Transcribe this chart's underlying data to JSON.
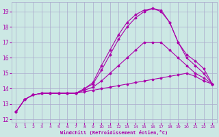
{
  "xlabel": "Windchill (Refroidissement éolien,°C)",
  "bg_color": "#cce8e4",
  "grid_color": "#aaaacc",
  "line_color": "#aa00aa",
  "xlim": [
    -0.5,
    23.5
  ],
  "ylim": [
    11.8,
    19.6
  ],
  "yticks": [
    12,
    13,
    14,
    15,
    16,
    17,
    18,
    19
  ],
  "xticks": [
    0,
    1,
    2,
    3,
    4,
    5,
    6,
    7,
    8,
    9,
    10,
    11,
    12,
    13,
    14,
    15,
    16,
    17,
    18,
    19,
    20,
    21,
    22,
    23
  ],
  "series": [
    {
      "x": [
        0,
        1,
        2,
        3,
        4,
        5,
        6,
        7,
        8,
        9,
        10,
        11,
        12,
        13,
        14,
        15,
        16,
        17,
        18,
        19,
        20,
        21,
        22,
        23
      ],
      "y": [
        12.5,
        13.3,
        13.6,
        13.7,
        13.7,
        13.7,
        13.7,
        13.7,
        13.8,
        13.9,
        14.0,
        14.1,
        14.2,
        14.3,
        14.4,
        14.5,
        14.6,
        14.7,
        14.8,
        14.9,
        15.0,
        14.8,
        14.5,
        14.3
      ]
    },
    {
      "x": [
        0,
        1,
        2,
        3,
        4,
        5,
        6,
        7,
        8,
        9,
        10,
        11,
        12,
        13,
        14,
        15,
        16,
        17,
        18,
        19,
        20,
        21,
        22,
        23
      ],
      "y": [
        12.5,
        13.3,
        13.6,
        13.7,
        13.7,
        13.7,
        13.7,
        13.7,
        13.9,
        14.1,
        14.5,
        15.0,
        15.5,
        16.0,
        16.5,
        17.0,
        17.0,
        17.0,
        16.5,
        16.0,
        15.5,
        15.0,
        14.7,
        14.3
      ]
    },
    {
      "x": [
        0,
        1,
        2,
        3,
        4,
        5,
        6,
        7,
        8,
        9,
        10,
        11,
        12,
        13,
        14,
        15,
        16,
        17,
        18,
        19,
        20,
        21,
        22,
        23
      ],
      "y": [
        12.5,
        13.3,
        13.6,
        13.7,
        13.7,
        13.7,
        13.7,
        13.7,
        14.0,
        14.3,
        15.2,
        16.2,
        17.2,
        18.0,
        18.6,
        19.0,
        19.2,
        19.0,
        18.3,
        17.0,
        16.0,
        15.5,
        15.0,
        14.3
      ]
    },
    {
      "x": [
        0,
        1,
        2,
        3,
        4,
        5,
        6,
        7,
        8,
        9,
        10,
        11,
        12,
        13,
        14,
        15,
        16,
        17,
        18,
        19,
        20,
        21,
        22,
        23
      ],
      "y": [
        12.5,
        13.3,
        13.6,
        13.7,
        13.7,
        13.7,
        13.7,
        13.7,
        14.0,
        14.4,
        15.5,
        16.5,
        17.5,
        18.3,
        18.8,
        19.1,
        19.2,
        19.1,
        18.3,
        17.0,
        16.2,
        15.8,
        15.3,
        14.3
      ]
    }
  ]
}
